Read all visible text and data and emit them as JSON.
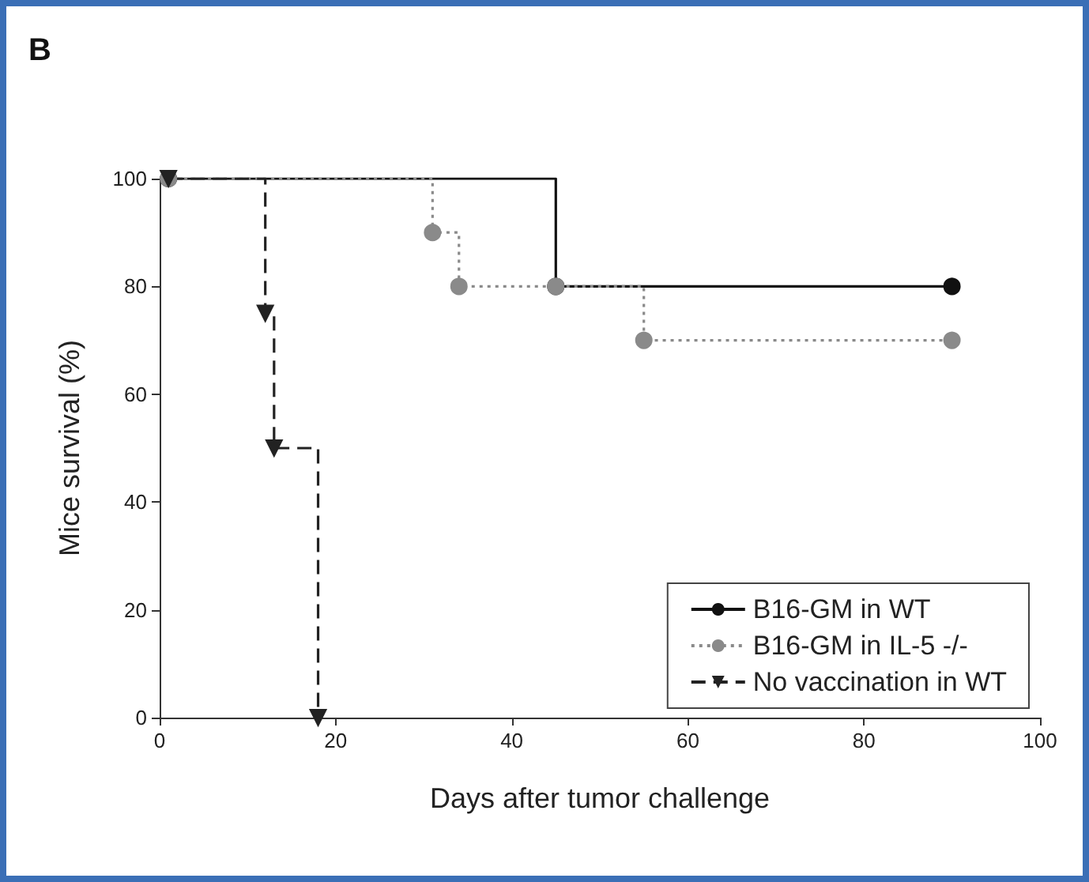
{
  "chart_data": {
    "type": "step",
    "xlabel": "Days after tumor challenge",
    "ylabel": "Mice survival (%)",
    "annotations": [
      "B"
    ],
    "xlim": [
      0,
      100
    ],
    "xticks": [
      0,
      20,
      40,
      60,
      80,
      100
    ],
    "ylim": [
      0,
      100
    ],
    "yticks": [
      0,
      20,
      40,
      60,
      80,
      100
    ],
    "grid": false,
    "legend": "bottom right",
    "series": [
      {
        "name": "B16-GM in WT",
        "color": "#111111",
        "marker": "circle",
        "line_style": "solid",
        "x": [
          1,
          45,
          90
        ],
        "values": [
          100,
          80,
          80
        ]
      },
      {
        "name": "B16-GM in IL-5 -/-",
        "color": "#8a8a8a",
        "marker": "circle",
        "line_style": "dotted",
        "x": [
          1,
          31,
          34,
          45,
          55,
          90
        ],
        "values": [
          100,
          90,
          80,
          80,
          70,
          70
        ]
      },
      {
        "name": "No vaccination in WT",
        "color": "#222222",
        "marker": "triangle",
        "line_style": "dashed",
        "x": [
          1,
          12,
          13,
          18
        ],
        "values": [
          100,
          75,
          50,
          0
        ]
      }
    ]
  }
}
